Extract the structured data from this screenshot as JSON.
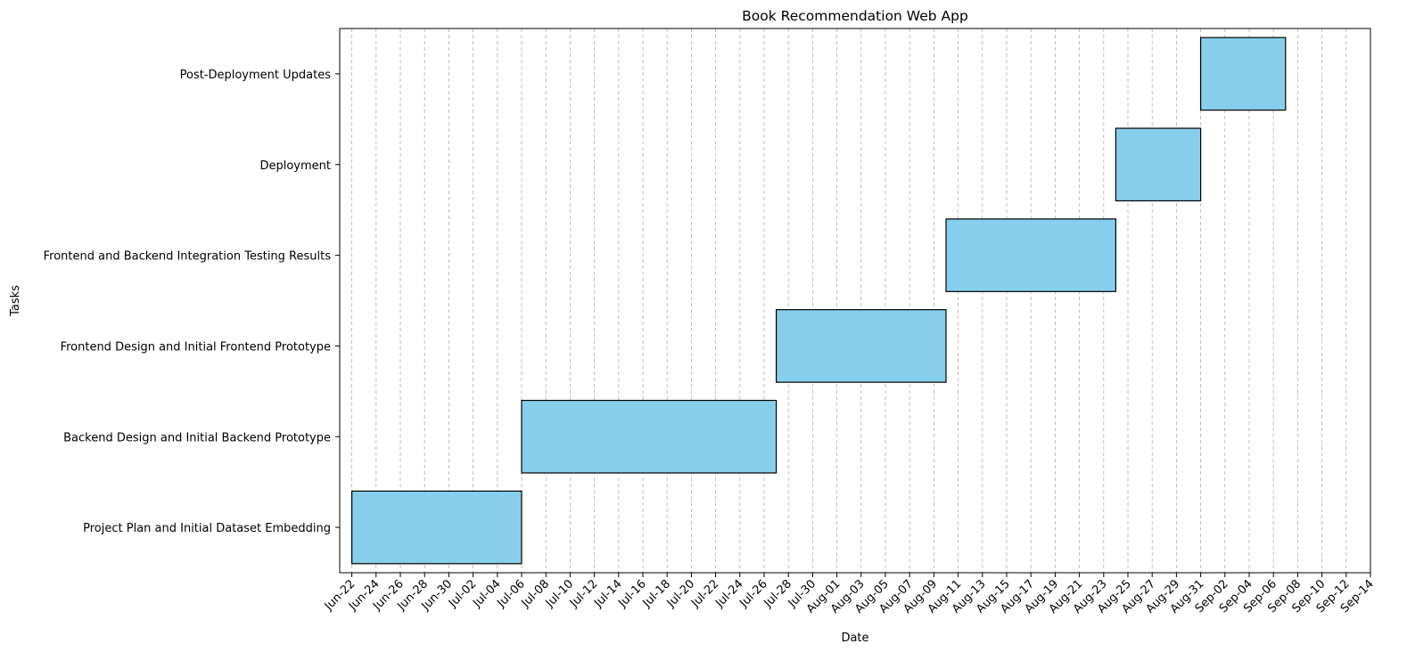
{
  "chart_data": {
    "type": "gantt",
    "title": "Book Recommendation Web App",
    "xlabel": "Date",
    "ylabel": "Tasks",
    "x_axis": "date",
    "xlim": [
      "2024-06-21",
      "2024-09-14"
    ],
    "tick_dates": [
      "2024-06-22",
      "2024-06-24",
      "2024-06-26",
      "2024-06-28",
      "2024-06-30",
      "2024-07-02",
      "2024-07-04",
      "2024-07-06",
      "2024-07-08",
      "2024-07-10",
      "2024-07-12",
      "2024-07-14",
      "2024-07-16",
      "2024-07-18",
      "2024-07-20",
      "2024-07-22",
      "2024-07-24",
      "2024-07-26",
      "2024-07-28",
      "2024-07-30",
      "2024-08-01",
      "2024-08-03",
      "2024-08-05",
      "2024-08-07",
      "2024-08-09",
      "2024-08-11",
      "2024-08-13",
      "2024-08-15",
      "2024-08-17",
      "2024-08-19",
      "2024-08-21",
      "2024-08-23",
      "2024-08-25",
      "2024-08-27",
      "2024-08-29",
      "2024-08-31",
      "2024-09-02",
      "2024-09-04",
      "2024-09-06",
      "2024-09-08",
      "2024-09-10",
      "2024-09-12",
      "2024-09-14"
    ],
    "tick_labels": [
      "Jun-22",
      "Jun-24",
      "Jun-26",
      "Jun-28",
      "Jun-30",
      "Jul-02",
      "Jul-04",
      "Jul-06",
      "Jul-08",
      "Jul-10",
      "Jul-12",
      "Jul-14",
      "Jul-16",
      "Jul-18",
      "Jul-20",
      "Jul-22",
      "Jul-24",
      "Jul-26",
      "Jul-28",
      "Jul-30",
      "Aug-01",
      "Aug-03",
      "Aug-05",
      "Aug-07",
      "Aug-09",
      "Aug-11",
      "Aug-13",
      "Aug-15",
      "Aug-17",
      "Aug-19",
      "Aug-21",
      "Aug-23",
      "Aug-25",
      "Aug-27",
      "Aug-29",
      "Aug-31",
      "Sep-02",
      "Sep-04",
      "Sep-06",
      "Sep-08",
      "Sep-10",
      "Sep-12",
      "Sep-14"
    ],
    "grid": "vertical-dashed",
    "bar_color": "#87CEEB",
    "bar_edge_color": "#000000",
    "tasks": [
      {
        "name": "Project Plan and Initial Dataset Embedding",
        "start": "2024-06-22",
        "end": "2024-07-06"
      },
      {
        "name": "Backend Design and Initial Backend Prototype",
        "start": "2024-07-06",
        "end": "2024-07-27"
      },
      {
        "name": "Frontend Design and Initial Frontend Prototype",
        "start": "2024-07-27",
        "end": "2024-08-10"
      },
      {
        "name": "Frontend and Backend Integration Testing Results",
        "start": "2024-08-10",
        "end": "2024-08-24"
      },
      {
        "name": "Deployment",
        "start": "2024-08-24",
        "end": "2024-08-31"
      },
      {
        "name": "Post-Deployment Updates",
        "start": "2024-08-31",
        "end": "2024-09-07"
      }
    ]
  }
}
